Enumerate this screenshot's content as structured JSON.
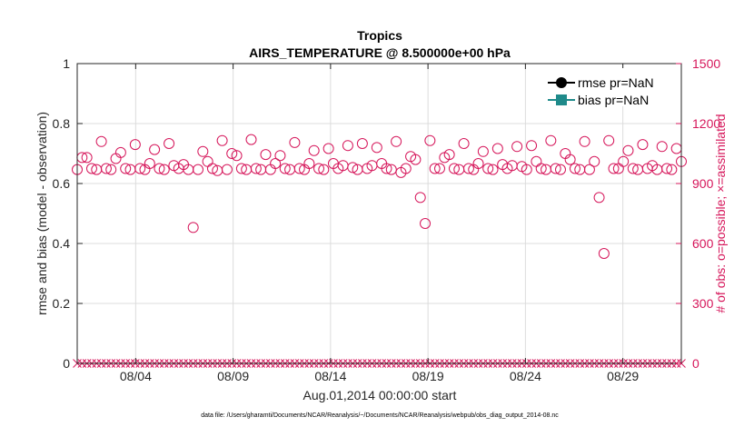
{
  "chart_data": {
    "type": "scatter",
    "title": "Tropics",
    "subtitle": "AIRS_TEMPERATURE @ 8.500000e+00 hPa",
    "xlabel": "Aug.01,2014 00:00:00 start",
    "ylabel_left": "rmse and bias (model - observation)",
    "ylabel_right": "# of obs: o=possible; ×=assimilated",
    "footer": "data file: /Users/gharamti/Documents/NCAR/Reanalysis/~/Documents/NCAR/Reanalysis/webpub/obs_diag_output_2014-08.nc",
    "grid": true,
    "legend_position": "top-right",
    "legend": [
      {
        "label": "rmse pr=NaN",
        "marker": "circle",
        "color": "#000000"
      },
      {
        "label": "bias pr=NaN",
        "marker": "square",
        "color": "#1f8a8a"
      }
    ],
    "x_range_days": [
      1,
      32
    ],
    "x_ticks": [
      {
        "day": 4,
        "label": "08/04"
      },
      {
        "day": 9,
        "label": "08/09"
      },
      {
        "day": 14,
        "label": "08/14"
      },
      {
        "day": 19,
        "label": "08/19"
      },
      {
        "day": 24,
        "label": "08/24"
      },
      {
        "day": 29,
        "label": "08/29"
      }
    ],
    "ylim_left": [
      0,
      1
    ],
    "yticks_left": [
      "0",
      "0.2",
      "0.4",
      "0.6",
      "0.8",
      "1"
    ],
    "ylim_right": [
      0,
      1500
    ],
    "yticks_right": [
      "0",
      "300",
      "600",
      "900",
      "1200",
      "1500"
    ],
    "colors": {
      "obs": "#d6175b",
      "axis": "#262626",
      "grid": "#dcdcdc"
    },
    "possible_obs": [
      970,
      1030,
      1030,
      975,
      970,
      1110,
      975,
      970,
      1025,
      1055,
      975,
      970,
      1095,
      975,
      970,
      1000,
      1070,
      975,
      970,
      1100,
      990,
      975,
      995,
      970,
      680,
      970,
      1060,
      1010,
      975,
      965,
      1115,
      970,
      1050,
      1040,
      975,
      970,
      1120,
      975,
      970,
      1045,
      970,
      1000,
      1040,
      975,
      970,
      1105,
      975,
      970,
      1000,
      1065,
      975,
      970,
      1075,
      1000,
      975,
      990,
      1090,
      980,
      970,
      1100,
      975,
      990,
      1080,
      1000,
      975,
      970,
      1110,
      955,
      975,
      1035,
      1020,
      830,
      700,
      1115,
      975,
      975,
      1030,
      1045,
      975,
      970,
      1100,
      975,
      970,
      1000,
      1060,
      975,
      970,
      1075,
      995,
      975,
      990,
      1085,
      985,
      970,
      1090,
      1010,
      975,
      970,
      1115,
      975,
      970,
      1050,
      1020,
      975,
      970,
      1110,
      970,
      1010,
      830,
      550,
      1115,
      975,
      975,
      1010,
      1065,
      975,
      970,
      1095,
      975,
      990,
      970,
      1085,
      975,
      970,
      1075,
      1010
    ],
    "assimilated_obs": 0
  }
}
